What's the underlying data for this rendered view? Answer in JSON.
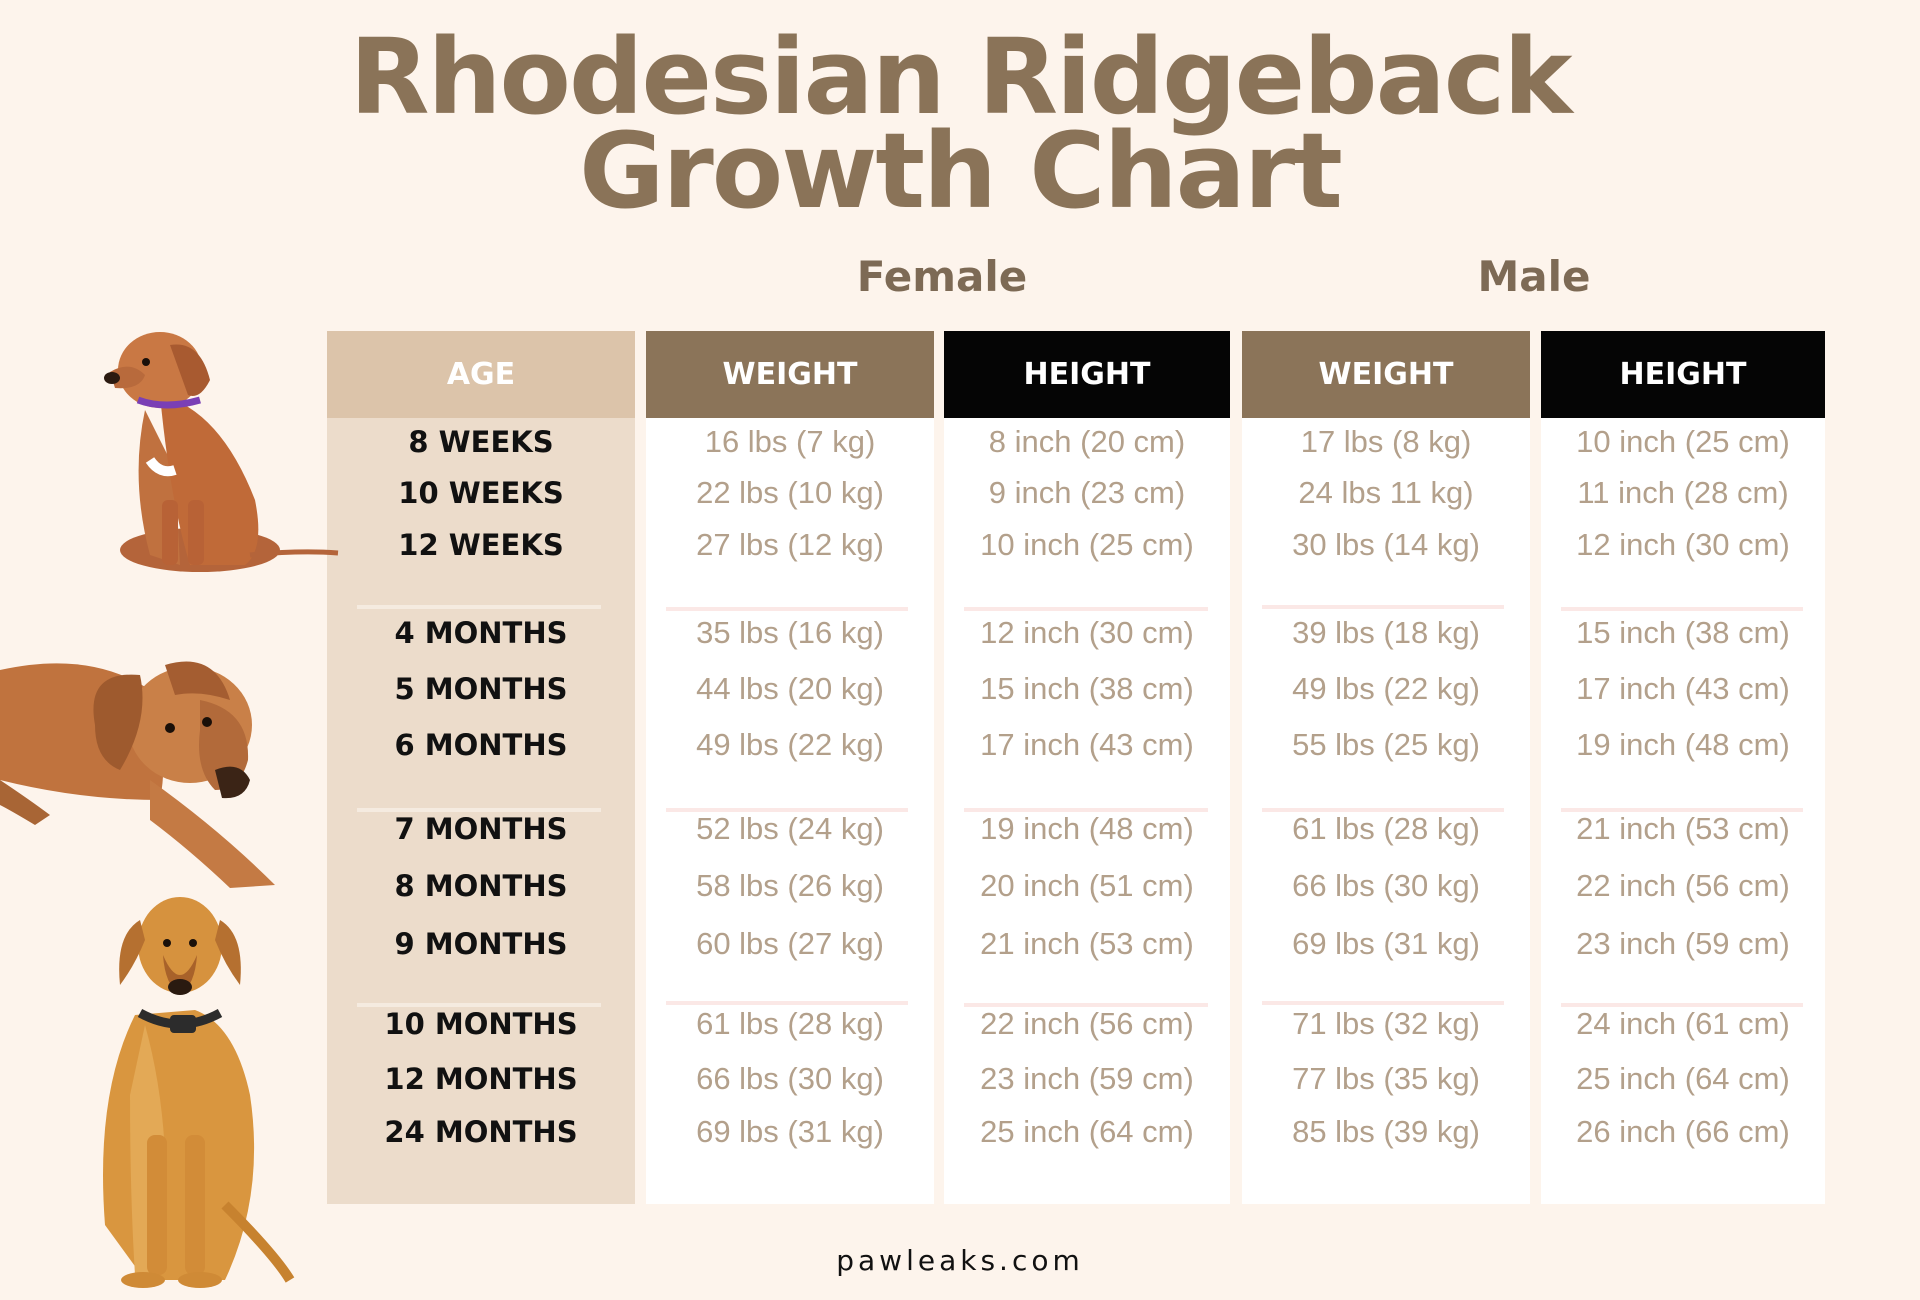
{
  "title": {
    "line1": "Rhodesian Ridgeback",
    "line2": "Growth Chart"
  },
  "groups": {
    "female": "Female",
    "male": "Male"
  },
  "headers": {
    "age": "AGE",
    "female_weight": "WEIGHT",
    "female_height": "HEIGHT",
    "male_weight": "WEIGHT",
    "male_height": "HEIGHT"
  },
  "rows": [
    {
      "age": "8 WEEKS",
      "f_weight": "16 lbs (7 kg)",
      "f_height": "8 inch (20 cm)",
      "m_weight": "17 lbs (8 kg)",
      "m_height": "10 inch (25 cm)"
    },
    {
      "age": "10 WEEKS",
      "f_weight": "22 lbs (10 kg)",
      "f_height": "9 inch (23 cm)",
      "m_weight": "24 lbs 11 kg)",
      "m_height": "11 inch (28 cm)"
    },
    {
      "age": "12 WEEKS",
      "f_weight": "27 lbs (12 kg)",
      "f_height": "10 inch (25 cm)",
      "m_weight": "30 lbs (14 kg)",
      "m_height": "12 inch (30 cm)"
    },
    {
      "age": "4 MONTHS",
      "f_weight": "35 lbs (16 kg)",
      "f_height": "12 inch (30 cm)",
      "m_weight": "39 lbs (18 kg)",
      "m_height": "15 inch (38 cm)"
    },
    {
      "age": "5 MONTHS",
      "f_weight": "44 lbs (20 kg)",
      "f_height": "15 inch (38 cm)",
      "m_weight": "49 lbs (22 kg)",
      "m_height": "17 inch (43 cm)"
    },
    {
      "age": "6 MONTHS",
      "f_weight": "49 lbs (22 kg)",
      "f_height": "17 inch (43 cm)",
      "m_weight": "55 lbs (25 kg)",
      "m_height": "19 inch (48 cm)"
    },
    {
      "age": "7 MONTHS",
      "f_weight": "52 lbs (24 kg)",
      "f_height": "19 inch (48 cm)",
      "m_weight": "61 lbs (28 kg)",
      "m_height": "21 inch (53 cm)"
    },
    {
      "age": "8 MONTHS",
      "f_weight": "58 lbs (26 kg)",
      "f_height": "20 inch (51 cm)",
      "m_weight": "66 lbs (30 kg)",
      "m_height": "22 inch (56 cm)"
    },
    {
      "age": "9 MONTHS",
      "f_weight": "60 lbs (27 kg)",
      "f_height": "21 inch (53 cm)",
      "m_weight": "69 lbs (31 kg)",
      "m_height": "23 inch (59 cm)"
    },
    {
      "age": "10 MONTHS",
      "f_weight": "61 lbs (28 kg)",
      "f_height": "22 inch (56 cm)",
      "m_weight": "71 lbs (32 kg)",
      "m_height": "24 inch (61 cm)"
    },
    {
      "age": "12 MONTHS",
      "f_weight": "66 lbs (30 kg)",
      "f_height": "23 inch (59 cm)",
      "m_weight": "77 lbs (35 kg)",
      "m_height": "25 inch (64 cm)"
    },
    {
      "age": "24 MONTHS",
      "f_weight": "69 lbs (31 kg)",
      "f_height": "25 inch (64 cm)",
      "m_weight": "85 lbs (39 kg)",
      "m_height": "26 inch (66 cm)"
    }
  ],
  "images": {
    "puppy_sitting": "dog-puppy-sitting-image",
    "dog_lying": "dog-lying-image",
    "dog_adult_sitting": "dog-adult-sitting-image"
  },
  "colors": {
    "background": "#fdf4ec",
    "title": "#8a7358",
    "age_header": "#dcc4aa",
    "age_column": "#ecdccb",
    "weight_header": "#8b7459",
    "height_header": "#050505",
    "value_text": "#b3a08b"
  },
  "footer": "pawleaks.com"
}
